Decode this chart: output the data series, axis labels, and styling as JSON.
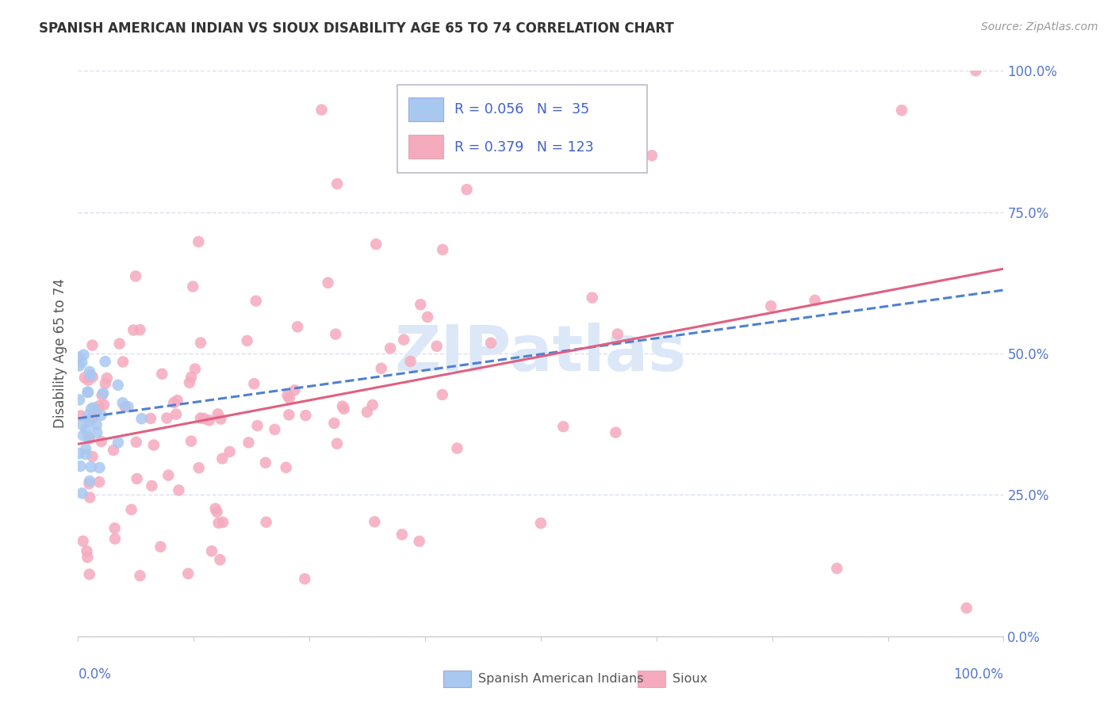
{
  "title": "SPANISH AMERICAN INDIAN VS SIOUX DISABILITY AGE 65 TO 74 CORRELATION CHART",
  "source": "Source: ZipAtlas.com",
  "ylabel": "Disability Age 65 to 74",
  "legend_label_blue": "Spanish American Indians",
  "legend_label_pink": "Sioux",
  "legend_R_blue": "0.056",
  "legend_N_blue": "35",
  "legend_R_pink": "0.379",
  "legend_N_pink": "123",
  "blue_scatter_color": "#a8c8f0",
  "pink_scatter_color": "#f5aabe",
  "blue_line_color": "#5080d0",
  "pink_line_color": "#e06080",
  "text_color": "#4060d0",
  "axis_text_color": "#5577cc",
  "background_color": "#ffffff",
  "watermark_color": "#dce8f8",
  "grid_color": "#d8e0ee",
  "spine_color": "#cccccc",
  "xlim": [
    0.0,
    1.0
  ],
  "ylim": [
    0.0,
    1.0
  ],
  "y_ticks": [
    0.0,
    0.25,
    0.5,
    0.75,
    1.0
  ],
  "y_tick_labels": [
    "0.0%",
    "25.0%",
    "50.0%",
    "75.0%",
    "100.0%"
  ]
}
